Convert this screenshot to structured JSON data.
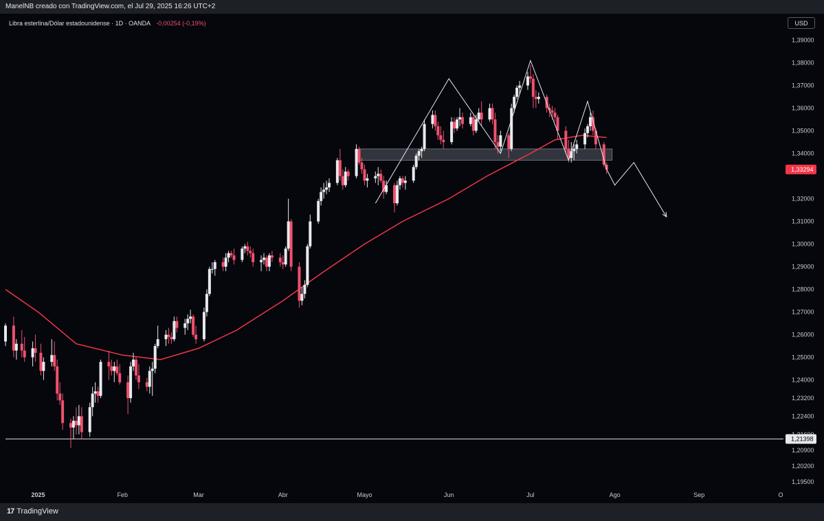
{
  "header": {
    "caption": "ManelNB creado con TradingView.com, el Jul 29, 2025 16:26 UTC+2"
  },
  "chart_data": {
    "type": "candlestick",
    "title": "Libra esterlina/Dólar estadounidense · 1D · OANDA",
    "change_label": "-0,00254 (-0,19%)",
    "currency": "USD",
    "last_price": "1,33294",
    "marked_level": "1,21398",
    "x_tick_labels": [
      "2025",
      "Feb",
      "Mar",
      "Abr",
      "Mayo",
      "Jun",
      "Jul",
      "Ago",
      "Sep",
      "O"
    ],
    "x_tick_dates": [
      "2025-01-01",
      "2025-02-01",
      "2025-03-01",
      "2025-04-01",
      "2025-05-01",
      "2025-06-01",
      "2025-07-01",
      "2025-08-01",
      "2025-09-01",
      "2025-10-01"
    ],
    "y_tick_labels": [
      "1,39000",
      "1,38000",
      "1,37000",
      "1,36000",
      "1,35000",
      "1,34000",
      "1,32000",
      "1,31000",
      "1,30000",
      "1,29000",
      "1,28000",
      "1,27000",
      "1,26000",
      "1,25000",
      "1,24000",
      "1,23200",
      "1,22400",
      "1,21600",
      "1,20900",
      "1,20200",
      "1,19500"
    ],
    "y_tick_values": [
      1.39,
      1.38,
      1.37,
      1.36,
      1.35,
      1.34,
      1.32,
      1.31,
      1.3,
      1.29,
      1.28,
      1.27,
      1.26,
      1.25,
      1.24,
      1.232,
      1.224,
      1.216,
      1.209,
      1.202,
      1.195
    ],
    "ylim": [
      1.192,
      1.395
    ],
    "xlim": [
      "2024-12-20",
      "2025-10-02"
    ],
    "colors": {
      "up": "#e8e9ec",
      "down": "#f0506e",
      "moving_average": "#f23645",
      "drawing": "#e8e9ec",
      "zone": "#6b6f78",
      "last_price_tag": "#f23645"
    },
    "candles": [
      [
        "2024-12-20",
        1.257,
        1.265,
        1.255,
        1.264
      ],
      [
        "2024-12-23",
        1.264,
        1.268,
        1.25,
        1.253
      ],
      [
        "2024-12-24",
        1.253,
        1.258,
        1.249,
        1.256
      ],
      [
        "2024-12-26",
        1.256,
        1.262,
        1.25,
        1.253
      ],
      [
        "2024-12-27",
        1.253,
        1.259,
        1.248,
        1.25
      ],
      [
        "2024-12-30",
        1.25,
        1.257,
        1.246,
        1.254
      ],
      [
        "2024-12-31",
        1.254,
        1.26,
        1.248,
        1.252
      ],
      [
        "2025-01-02",
        1.252,
        1.256,
        1.242,
        1.244
      ],
      [
        "2025-01-03",
        1.244,
        1.25,
        1.24,
        1.248
      ],
      [
        "2025-01-06",
        1.248,
        1.258,
        1.246,
        1.251
      ],
      [
        "2025-01-07",
        1.251,
        1.257,
        1.244,
        1.246
      ],
      [
        "2025-01-08",
        1.246,
        1.249,
        1.231,
        1.234
      ],
      [
        "2025-01-09",
        1.234,
        1.239,
        1.229,
        1.231
      ],
      [
        "2025-01-10",
        1.231,
        1.234,
        1.218,
        1.221
      ],
      [
        "2025-01-13",
        1.221,
        1.223,
        1.21,
        1.219
      ],
      [
        "2025-01-14",
        1.219,
        1.224,
        1.214,
        1.222
      ],
      [
        "2025-01-15",
        1.222,
        1.228,
        1.216,
        1.22
      ],
      [
        "2025-01-16",
        1.22,
        1.229,
        1.216,
        1.224
      ],
      [
        "2025-01-17",
        1.224,
        1.228,
        1.214,
        1.217
      ],
      [
        "2025-01-20",
        1.217,
        1.23,
        1.215,
        1.228
      ],
      [
        "2025-01-21",
        1.228,
        1.237,
        1.224,
        1.234
      ],
      [
        "2025-01-22",
        1.234,
        1.239,
        1.23,
        1.235
      ],
      [
        "2025-01-23",
        1.235,
        1.237,
        1.23,
        1.233
      ],
      [
        "2025-01-24",
        1.233,
        1.249,
        1.232,
        1.248
      ],
      [
        "2025-01-27",
        1.248,
        1.253,
        1.24,
        1.246
      ],
      [
        "2025-01-28",
        1.246,
        1.249,
        1.242,
        1.244
      ],
      [
        "2025-01-29",
        1.244,
        1.248,
        1.239,
        1.246
      ],
      [
        "2025-01-30",
        1.246,
        1.249,
        1.242,
        1.243
      ],
      [
        "2025-01-31",
        1.243,
        1.247,
        1.238,
        1.239
      ],
      [
        "2025-02-03",
        1.239,
        1.242,
        1.225,
        1.232
      ],
      [
        "2025-02-04",
        1.232,
        1.248,
        1.23,
        1.246
      ],
      [
        "2025-02-05",
        1.246,
        1.252,
        1.244,
        1.249
      ],
      [
        "2025-02-06",
        1.249,
        1.25,
        1.24,
        1.242
      ],
      [
        "2025-02-07",
        1.242,
        1.247,
        1.236,
        1.239
      ],
      [
        "2025-02-10",
        1.239,
        1.241,
        1.235,
        1.237
      ],
      [
        "2025-02-11",
        1.237,
        1.246,
        1.234,
        1.244
      ],
      [
        "2025-02-12",
        1.244,
        1.248,
        1.233,
        1.245
      ],
      [
        "2025-02-13",
        1.245,
        1.256,
        1.243,
        1.255
      ],
      [
        "2025-02-14",
        1.255,
        1.264,
        1.254,
        1.258
      ],
      [
        "2025-02-17",
        1.258,
        1.262,
        1.255,
        1.26
      ],
      [
        "2025-02-18",
        1.26,
        1.263,
        1.256,
        1.259
      ],
      [
        "2025-02-19",
        1.259,
        1.261,
        1.256,
        1.258
      ],
      [
        "2025-02-20",
        1.258,
        1.268,
        1.257,
        1.266
      ],
      [
        "2025-02-21",
        1.266,
        1.268,
        1.261,
        1.263
      ],
      [
        "2025-02-24",
        1.263,
        1.267,
        1.26,
        1.265
      ],
      [
        "2025-02-25",
        1.265,
        1.269,
        1.262,
        1.267
      ],
      [
        "2025-02-26",
        1.267,
        1.271,
        1.265,
        1.268
      ],
      [
        "2025-02-27",
        1.268,
        1.269,
        1.259,
        1.26
      ],
      [
        "2025-02-28",
        1.26,
        1.264,
        1.256,
        1.258
      ],
      [
        "2025-03-03",
        1.258,
        1.272,
        1.257,
        1.27
      ],
      [
        "2025-03-04",
        1.27,
        1.28,
        1.268,
        1.278
      ],
      [
        "2025-03-05",
        1.278,
        1.29,
        1.277,
        1.289
      ],
      [
        "2025-03-06",
        1.289,
        1.292,
        1.287,
        1.289
      ],
      [
        "2025-03-07",
        1.289,
        1.293,
        1.286,
        1.292
      ],
      [
        "2025-03-10",
        1.292,
        1.294,
        1.288,
        1.29
      ],
      [
        "2025-03-11",
        1.29,
        1.296,
        1.288,
        1.294
      ],
      [
        "2025-03-12",
        1.294,
        1.297,
        1.292,
        1.296
      ],
      [
        "2025-03-13",
        1.296,
        1.297,
        1.294,
        1.295
      ],
      [
        "2025-03-14",
        1.295,
        1.298,
        1.291,
        1.293
      ],
      [
        "2025-03-17",
        1.293,
        1.299,
        1.292,
        1.298
      ],
      [
        "2025-03-18",
        1.298,
        1.3,
        1.296,
        1.299
      ],
      [
        "2025-03-19",
        1.299,
        1.301,
        1.295,
        1.297
      ],
      [
        "2025-03-20",
        1.297,
        1.299,
        1.294,
        1.296
      ],
      [
        "2025-03-21",
        1.296,
        1.298,
        1.29,
        1.292
      ],
      [
        "2025-03-24",
        1.292,
        1.295,
        1.288,
        1.293
      ],
      [
        "2025-03-25",
        1.293,
        1.296,
        1.291,
        1.294
      ],
      [
        "2025-03-26",
        1.294,
        1.295,
        1.288,
        1.29
      ],
      [
        "2025-03-27",
        1.29,
        1.296,
        1.288,
        1.295
      ],
      [
        "2025-03-28",
        1.295,
        1.297,
        1.292,
        1.294
      ],
      [
        "2025-03-31",
        1.294,
        1.296,
        1.29,
        1.292
      ],
      [
        "2025-04-01",
        1.292,
        1.295,
        1.289,
        1.291
      ],
      [
        "2025-04-02",
        1.291,
        1.299,
        1.29,
        1.298
      ],
      [
        "2025-04-03",
        1.298,
        1.32,
        1.297,
        1.31
      ],
      [
        "2025-04-04",
        1.31,
        1.311,
        1.288,
        1.29
      ],
      [
        "2025-04-07",
        1.29,
        1.292,
        1.272,
        1.275
      ],
      [
        "2025-04-08",
        1.275,
        1.281,
        1.273,
        1.278
      ],
      [
        "2025-04-09",
        1.278,
        1.284,
        1.276,
        1.282
      ],
      [
        "2025-04-10",
        1.282,
        1.3,
        1.281,
        1.299
      ],
      [
        "2025-04-11",
        1.299,
        1.313,
        1.298,
        1.31
      ],
      [
        "2025-04-14",
        1.31,
        1.32,
        1.309,
        1.319
      ],
      [
        "2025-04-15",
        1.319,
        1.325,
        1.317,
        1.323
      ],
      [
        "2025-04-16",
        1.323,
        1.327,
        1.32,
        1.324
      ],
      [
        "2025-04-17",
        1.324,
        1.328,
        1.322,
        1.325
      ],
      [
        "2025-04-18",
        1.325,
        1.329,
        1.323,
        1.327
      ],
      [
        "2025-04-21",
        1.327,
        1.338,
        1.326,
        1.337
      ],
      [
        "2025-04-22",
        1.337,
        1.342,
        1.328,
        1.33
      ],
      [
        "2025-04-23",
        1.33,
        1.333,
        1.324,
        1.326
      ],
      [
        "2025-04-24",
        1.326,
        1.334,
        1.325,
        1.332
      ],
      [
        "2025-04-25",
        1.332,
        1.333,
        1.328,
        1.33
      ],
      [
        "2025-04-28",
        1.33,
        1.344,
        1.329,
        1.342
      ],
      [
        "2025-04-29",
        1.342,
        1.343,
        1.335,
        1.336
      ],
      [
        "2025-04-30",
        1.336,
        1.338,
        1.331,
        1.333
      ],
      [
        "2025-05-01",
        1.333,
        1.335,
        1.326,
        1.328
      ],
      [
        "2025-05-02",
        1.328,
        1.331,
        1.325,
        1.329
      ],
      [
        "2025-05-05",
        1.329,
        1.332,
        1.327,
        1.33
      ],
      [
        "2025-05-06",
        1.33,
        1.334,
        1.326,
        1.331
      ],
      [
        "2025-05-07",
        1.331,
        1.333,
        1.327,
        1.328
      ],
      [
        "2025-05-08",
        1.328,
        1.33,
        1.32,
        1.323
      ],
      [
        "2025-05-09",
        1.323,
        1.328,
        1.322,
        1.326
      ],
      [
        "2025-05-12",
        1.326,
        1.327,
        1.314,
        1.318
      ],
      [
        "2025-05-13",
        1.318,
        1.328,
        1.317,
        1.326
      ],
      [
        "2025-05-14",
        1.326,
        1.33,
        1.324,
        1.329
      ],
      [
        "2025-05-15",
        1.329,
        1.33,
        1.325,
        1.327
      ],
      [
        "2025-05-16",
        1.327,
        1.33,
        1.324,
        1.328
      ],
      [
        "2025-05-19",
        1.328,
        1.335,
        1.327,
        1.334
      ],
      [
        "2025-05-20",
        1.334,
        1.34,
        1.333,
        1.339
      ],
      [
        "2025-05-21",
        1.339,
        1.342,
        1.337,
        1.341
      ],
      [
        "2025-05-22",
        1.341,
        1.343,
        1.338,
        1.342
      ],
      [
        "2025-05-23",
        1.342,
        1.355,
        1.341,
        1.353
      ],
      [
        "2025-05-26",
        1.353,
        1.359,
        1.351,
        1.357
      ],
      [
        "2025-05-27",
        1.357,
        1.359,
        1.35,
        1.352
      ],
      [
        "2025-05-28",
        1.352,
        1.354,
        1.346,
        1.348
      ],
      [
        "2025-05-29",
        1.348,
        1.352,
        1.344,
        1.346
      ],
      [
        "2025-05-30",
        1.346,
        1.35,
        1.342,
        1.345
      ],
      [
        "2025-06-02",
        1.345,
        1.356,
        1.344,
        1.354
      ],
      [
        "2025-06-03",
        1.354,
        1.356,
        1.349,
        1.351
      ],
      [
        "2025-06-04",
        1.351,
        1.356,
        1.35,
        1.355
      ],
      [
        "2025-06-05",
        1.355,
        1.36,
        1.352,
        1.356
      ],
      [
        "2025-06-06",
        1.356,
        1.358,
        1.351,
        1.353
      ],
      [
        "2025-06-09",
        1.353,
        1.358,
        1.352,
        1.356
      ],
      [
        "2025-06-10",
        1.356,
        1.357,
        1.348,
        1.35
      ],
      [
        "2025-06-11",
        1.35,
        1.357,
        1.349,
        1.355
      ],
      [
        "2025-06-12",
        1.355,
        1.36,
        1.354,
        1.358
      ],
      [
        "2025-06-13",
        1.358,
        1.363,
        1.352,
        1.355
      ],
      [
        "2025-06-16",
        1.355,
        1.362,
        1.354,
        1.36
      ],
      [
        "2025-06-17",
        1.36,
        1.362,
        1.353,
        1.355
      ],
      [
        "2025-06-18",
        1.355,
        1.358,
        1.342,
        1.345
      ],
      [
        "2025-06-19",
        1.345,
        1.348,
        1.34,
        1.343
      ],
      [
        "2025-06-20",
        1.343,
        1.35,
        1.341,
        1.348
      ],
      [
        "2025-06-23",
        1.348,
        1.349,
        1.338,
        1.342
      ],
      [
        "2025-06-24",
        1.342,
        1.362,
        1.341,
        1.36
      ],
      [
        "2025-06-25",
        1.36,
        1.366,
        1.358,
        1.365
      ],
      [
        "2025-06-26",
        1.365,
        1.37,
        1.364,
        1.369
      ],
      [
        "2025-06-27",
        1.369,
        1.372,
        1.366,
        1.37
      ],
      [
        "2025-06-30",
        1.37,
        1.376,
        1.368,
        1.374
      ],
      [
        "2025-07-01",
        1.374,
        1.379,
        1.371,
        1.373
      ],
      [
        "2025-07-02",
        1.373,
        1.375,
        1.36,
        1.365
      ],
      [
        "2025-07-03",
        1.365,
        1.368,
        1.36,
        1.364
      ],
      [
        "2025-07-04",
        1.364,
        1.367,
        1.362,
        1.365
      ],
      [
        "2025-07-07",
        1.365,
        1.366,
        1.358,
        1.36
      ],
      [
        "2025-07-08",
        1.36,
        1.362,
        1.356,
        1.359
      ],
      [
        "2025-07-09",
        1.359,
        1.361,
        1.355,
        1.358
      ],
      [
        "2025-07-10",
        1.358,
        1.36,
        1.354,
        1.356
      ],
      [
        "2025-07-11",
        1.356,
        1.357,
        1.346,
        1.35
      ],
      [
        "2025-07-14",
        1.35,
        1.352,
        1.34,
        1.342
      ],
      [
        "2025-07-15",
        1.342,
        1.346,
        1.336,
        1.338
      ],
      [
        "2025-07-16",
        1.338,
        1.345,
        1.336,
        1.341
      ],
      [
        "2025-07-17",
        1.341,
        1.344,
        1.337,
        1.342
      ],
      [
        "2025-07-18",
        1.342,
        1.346,
        1.34,
        1.344
      ],
      [
        "2025-07-21",
        1.344,
        1.351,
        1.342,
        1.349
      ],
      [
        "2025-07-22",
        1.349,
        1.353,
        1.347,
        1.352
      ],
      [
        "2025-07-23",
        1.352,
        1.358,
        1.35,
        1.356
      ],
      [
        "2025-07-24",
        1.356,
        1.359,
        1.348,
        1.35
      ],
      [
        "2025-07-25",
        1.35,
        1.351,
        1.342,
        1.344
      ],
      [
        "2025-07-28",
        1.344,
        1.345,
        1.334,
        1.335
      ],
      [
        "2025-07-29",
        1.335,
        1.336,
        1.331,
        1.3329
      ]
    ],
    "moving_average": [
      [
        "2024-12-20",
        1.28
      ],
      [
        "2025-01-01",
        1.27
      ],
      [
        "2025-01-15",
        1.256
      ],
      [
        "2025-02-01",
        1.251
      ],
      [
        "2025-02-15",
        1.249
      ],
      [
        "2025-03-01",
        1.254
      ],
      [
        "2025-03-15",
        1.262
      ],
      [
        "2025-04-01",
        1.275
      ],
      [
        "2025-04-15",
        1.287
      ],
      [
        "2025-05-01",
        1.3
      ],
      [
        "2025-05-15",
        1.31
      ],
      [
        "2025-06-01",
        1.32
      ],
      [
        "2025-06-15",
        1.33
      ],
      [
        "2025-07-01",
        1.34
      ],
      [
        "2025-07-10",
        1.346
      ],
      [
        "2025-07-20",
        1.348
      ],
      [
        "2025-07-29",
        1.347
      ]
    ],
    "resistance_zone": {
      "from": "2025-04-29",
      "to": "2025-07-31",
      "low": 1.337,
      "high": 1.342
    },
    "pattern_lines": [
      {
        "arrow": false,
        "points": [
          [
            "2025-05-05",
            1.318
          ],
          [
            "2025-06-01",
            1.373
          ],
          [
            "2025-06-20",
            1.34
          ],
          [
            "2025-07-01",
            1.381
          ],
          [
            "2025-07-15",
            1.337
          ],
          [
            "2025-07-22",
            1.363
          ],
          [
            "2025-07-29",
            1.333
          ]
        ]
      },
      {
        "arrow": true,
        "points": [
          [
            "2025-07-29",
            1.333
          ],
          [
            "2025-08-01",
            1.326
          ],
          [
            "2025-08-08",
            1.336
          ],
          [
            "2025-08-20",
            1.312
          ]
        ]
      }
    ]
  }
}
